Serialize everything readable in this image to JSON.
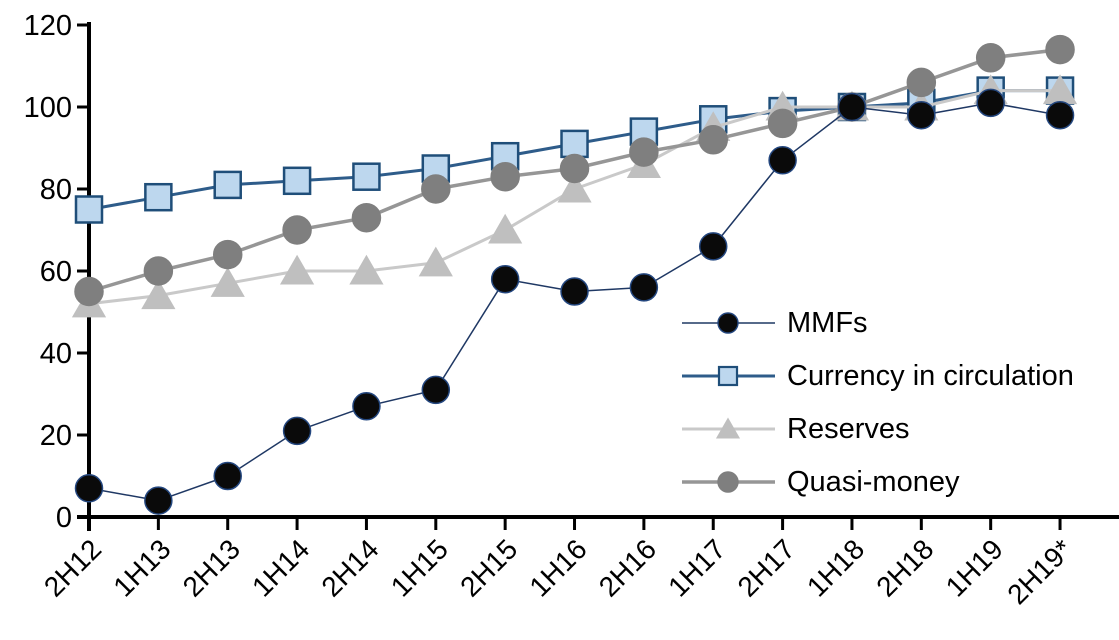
{
  "chart_data": {
    "type": "line",
    "title": "",
    "xlabel": "",
    "ylabel": "",
    "categories": [
      "2H12",
      "1H13",
      "2H13",
      "1H14",
      "2H14",
      "1H15",
      "2H15",
      "1H16",
      "2H16",
      "1H17",
      "2H17",
      "1H18",
      "2H18",
      "1H19",
      "2H19*"
    ],
    "series": [
      {
        "name": "MMFs",
        "marker": "circle",
        "line_color": "#1F3864",
        "line_width": 1.5,
        "marker_fill": "#0a0a0a",
        "marker_stroke": "#24477F",
        "values": [
          7,
          4,
          10,
          21,
          27,
          31,
          58,
          55,
          56,
          66,
          87,
          100,
          98,
          101,
          98
        ]
      },
      {
        "name": "Currency in circulation",
        "marker": "square",
        "line_color": "#2E5C8A",
        "line_width": 3,
        "marker_fill": "#BDD7EE",
        "marker_stroke": "#1F4E79",
        "values": [
          75,
          78,
          81,
          82,
          83,
          85,
          88,
          91,
          94,
          97,
          99,
          100,
          101,
          104,
          104
        ]
      },
      {
        "name": "Reserves",
        "marker": "triangle",
        "line_color": "#C9C9C9",
        "line_width": 3,
        "marker_fill": "#BFBFBF",
        "marker_stroke": "#BFBFBF",
        "values": [
          52,
          54,
          57,
          60,
          60,
          62,
          70,
          80,
          86,
          95,
          100,
          100,
          100,
          104,
          104
        ]
      },
      {
        "name": "Quasi-money",
        "marker": "circle",
        "line_color": "#969696",
        "line_width": 3.5,
        "marker_fill": "#7F7F7F",
        "marker_stroke": "#7F7F7F",
        "values": [
          55,
          60,
          64,
          70,
          73,
          80,
          83,
          85,
          89,
          92,
          96,
          100,
          106,
          112,
          114
        ]
      }
    ],
    "y_axis": {
      "min": 0,
      "max": 120,
      "step": 20,
      "ticks": [
        0,
        20,
        40,
        60,
        80,
        100,
        120
      ]
    },
    "ylim": [
      0,
      120
    ],
    "grid": false,
    "legend_position": "inside-right",
    "axis_color": "#000000",
    "background": "#FFFFFF"
  }
}
